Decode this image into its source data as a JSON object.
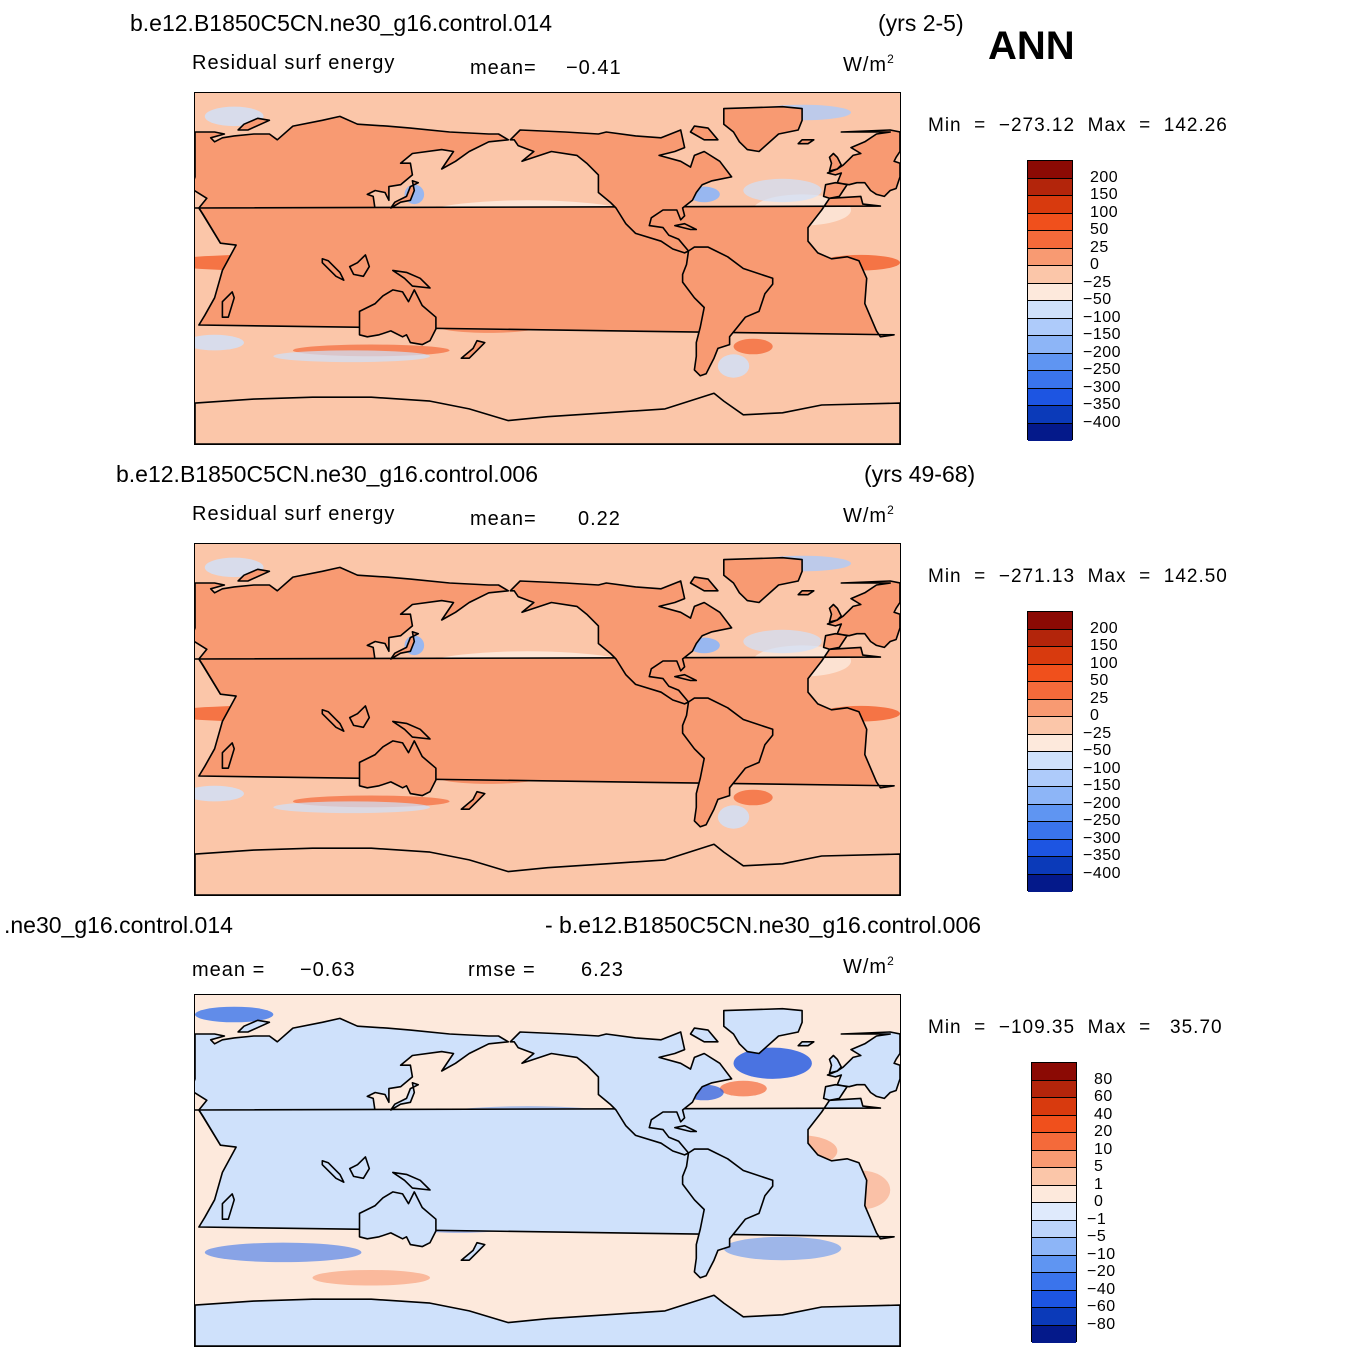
{
  "ann_label": "ANN",
  "panels": [
    {
      "case_name": "b.e12.B1850C5CN.ne30_g16.control.014",
      "years": "(yrs 2-5)",
      "field": "Residual  surf  energy",
      "mean_label": "mean=",
      "mean_value": "−0.41",
      "units": "W/m",
      "units_sup": "2",
      "min_label": "Min",
      "min_value": "−273.12",
      "max_label": "Max",
      "max_value": "142.26",
      "levels": [
        "200",
        "150",
        "100",
        "50",
        "25",
        "0",
        "−25",
        "−50",
        "−100",
        "−150",
        "−200",
        "−250",
        "−300",
        "−350",
        "−400"
      ],
      "colors": [
        "#8b0a04",
        "#b3250b",
        "#d83a0e",
        "#f0501c",
        "#f46a3a",
        "#f89a72",
        "#fbc6a9",
        "#fde9dc",
        "#cfe1fb",
        "#aecbfa",
        "#8db5f7",
        "#5f95f2",
        "#3a74ec",
        "#1d55e2",
        "#0b3ab9",
        "#04198a"
      ],
      "pattern": "field"
    },
    {
      "case_name": "b.e12.B1850C5CN.ne30_g16.control.006",
      "years": "(yrs 49-68)",
      "field": "Residual  surf  energy",
      "mean_label": "mean=",
      "mean_value": "0.22",
      "units": "W/m",
      "units_sup": "2",
      "min_label": "Min",
      "min_value": "−271.13",
      "max_label": "Max",
      "max_value": "142.50",
      "levels": [
        "200",
        "150",
        "100",
        "50",
        "25",
        "0",
        "−25",
        "−50",
        "−100",
        "−150",
        "−200",
        "−250",
        "−300",
        "−350",
        "−400"
      ],
      "colors": [
        "#8b0a04",
        "#b3250b",
        "#d83a0e",
        "#f0501c",
        "#f46a3a",
        "#f89a72",
        "#fbc6a9",
        "#fde9dc",
        "#cfe1fb",
        "#aecbfa",
        "#8db5f7",
        "#5f95f2",
        "#3a74ec",
        "#1d55e2",
        "#0b3ab9",
        "#04198a"
      ],
      "pattern": "field"
    },
    {
      "case_name": ".ne30_g16.control.014",
      "case_name_right": "- b.e12.B1850C5CN.ne30_g16.control.006",
      "mean_label": "mean  =",
      "mean_value": "−0.63",
      "rmse_label": "rmse  =",
      "rmse_value": "6.23",
      "units": "W/m",
      "units_sup": "2",
      "min_label": "Min",
      "min_value": "−109.35",
      "max_label": "Max",
      "max_value": "35.70",
      "levels": [
        "80",
        "60",
        "40",
        "20",
        "10",
        "5",
        "1",
        "0",
        "−1",
        "−5",
        "−10",
        "−20",
        "−40",
        "−60",
        "−80"
      ],
      "colors": [
        "#8b0a04",
        "#b3250b",
        "#d83a0e",
        "#f0501c",
        "#f46a3a",
        "#f89a72",
        "#fbc6a9",
        "#fde9dc",
        "#dfeafc",
        "#bcd4fb",
        "#8db5f7",
        "#5f95f2",
        "#3a74ec",
        "#1d55e2",
        "#0b3ab9",
        "#04198a"
      ],
      "pattern": "diff"
    }
  ]
}
